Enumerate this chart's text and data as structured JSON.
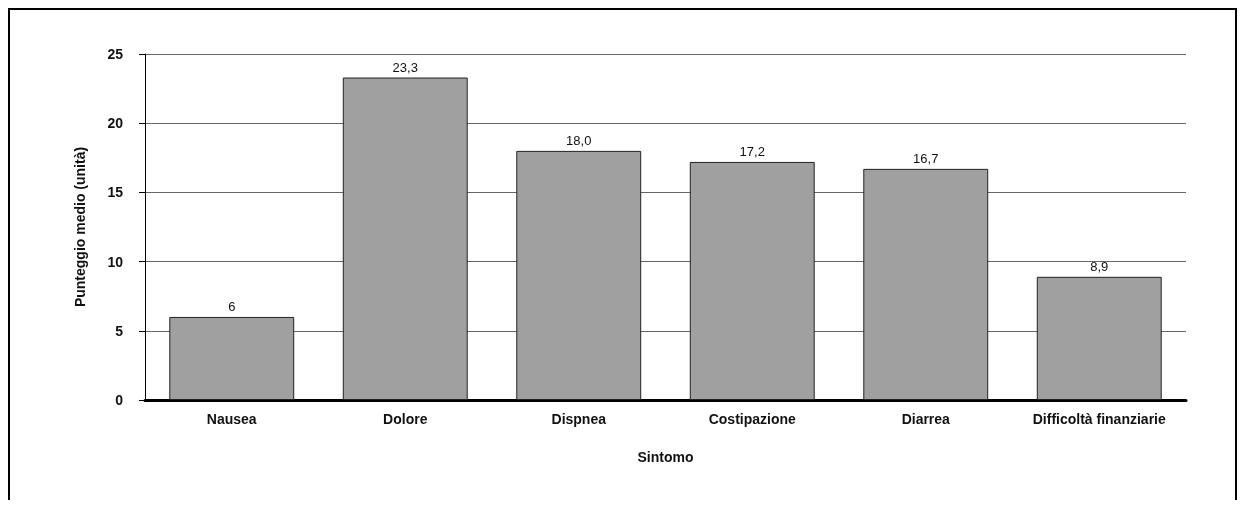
{
  "chart_data": {
    "type": "bar",
    "xlabel": "Sintomo",
    "ylabel": "Punteggio medio (unità)",
    "categories": [
      "Nausea",
      "Dolore",
      "Dispnea",
      "Costipazione",
      "Diarrea",
      "Difficoltà finanziarie"
    ],
    "values": [
      6,
      23.3,
      18.0,
      17.2,
      16.7,
      8.9
    ],
    "value_labels": [
      "6",
      "23,3",
      "18,0",
      "17,2",
      "16,7",
      "8,9"
    ],
    "color": "#a0a0a0",
    "ylim": [
      0,
      25
    ],
    "yticks": [
      0,
      5,
      10,
      15,
      20,
      25
    ],
    "grid": "y"
  }
}
